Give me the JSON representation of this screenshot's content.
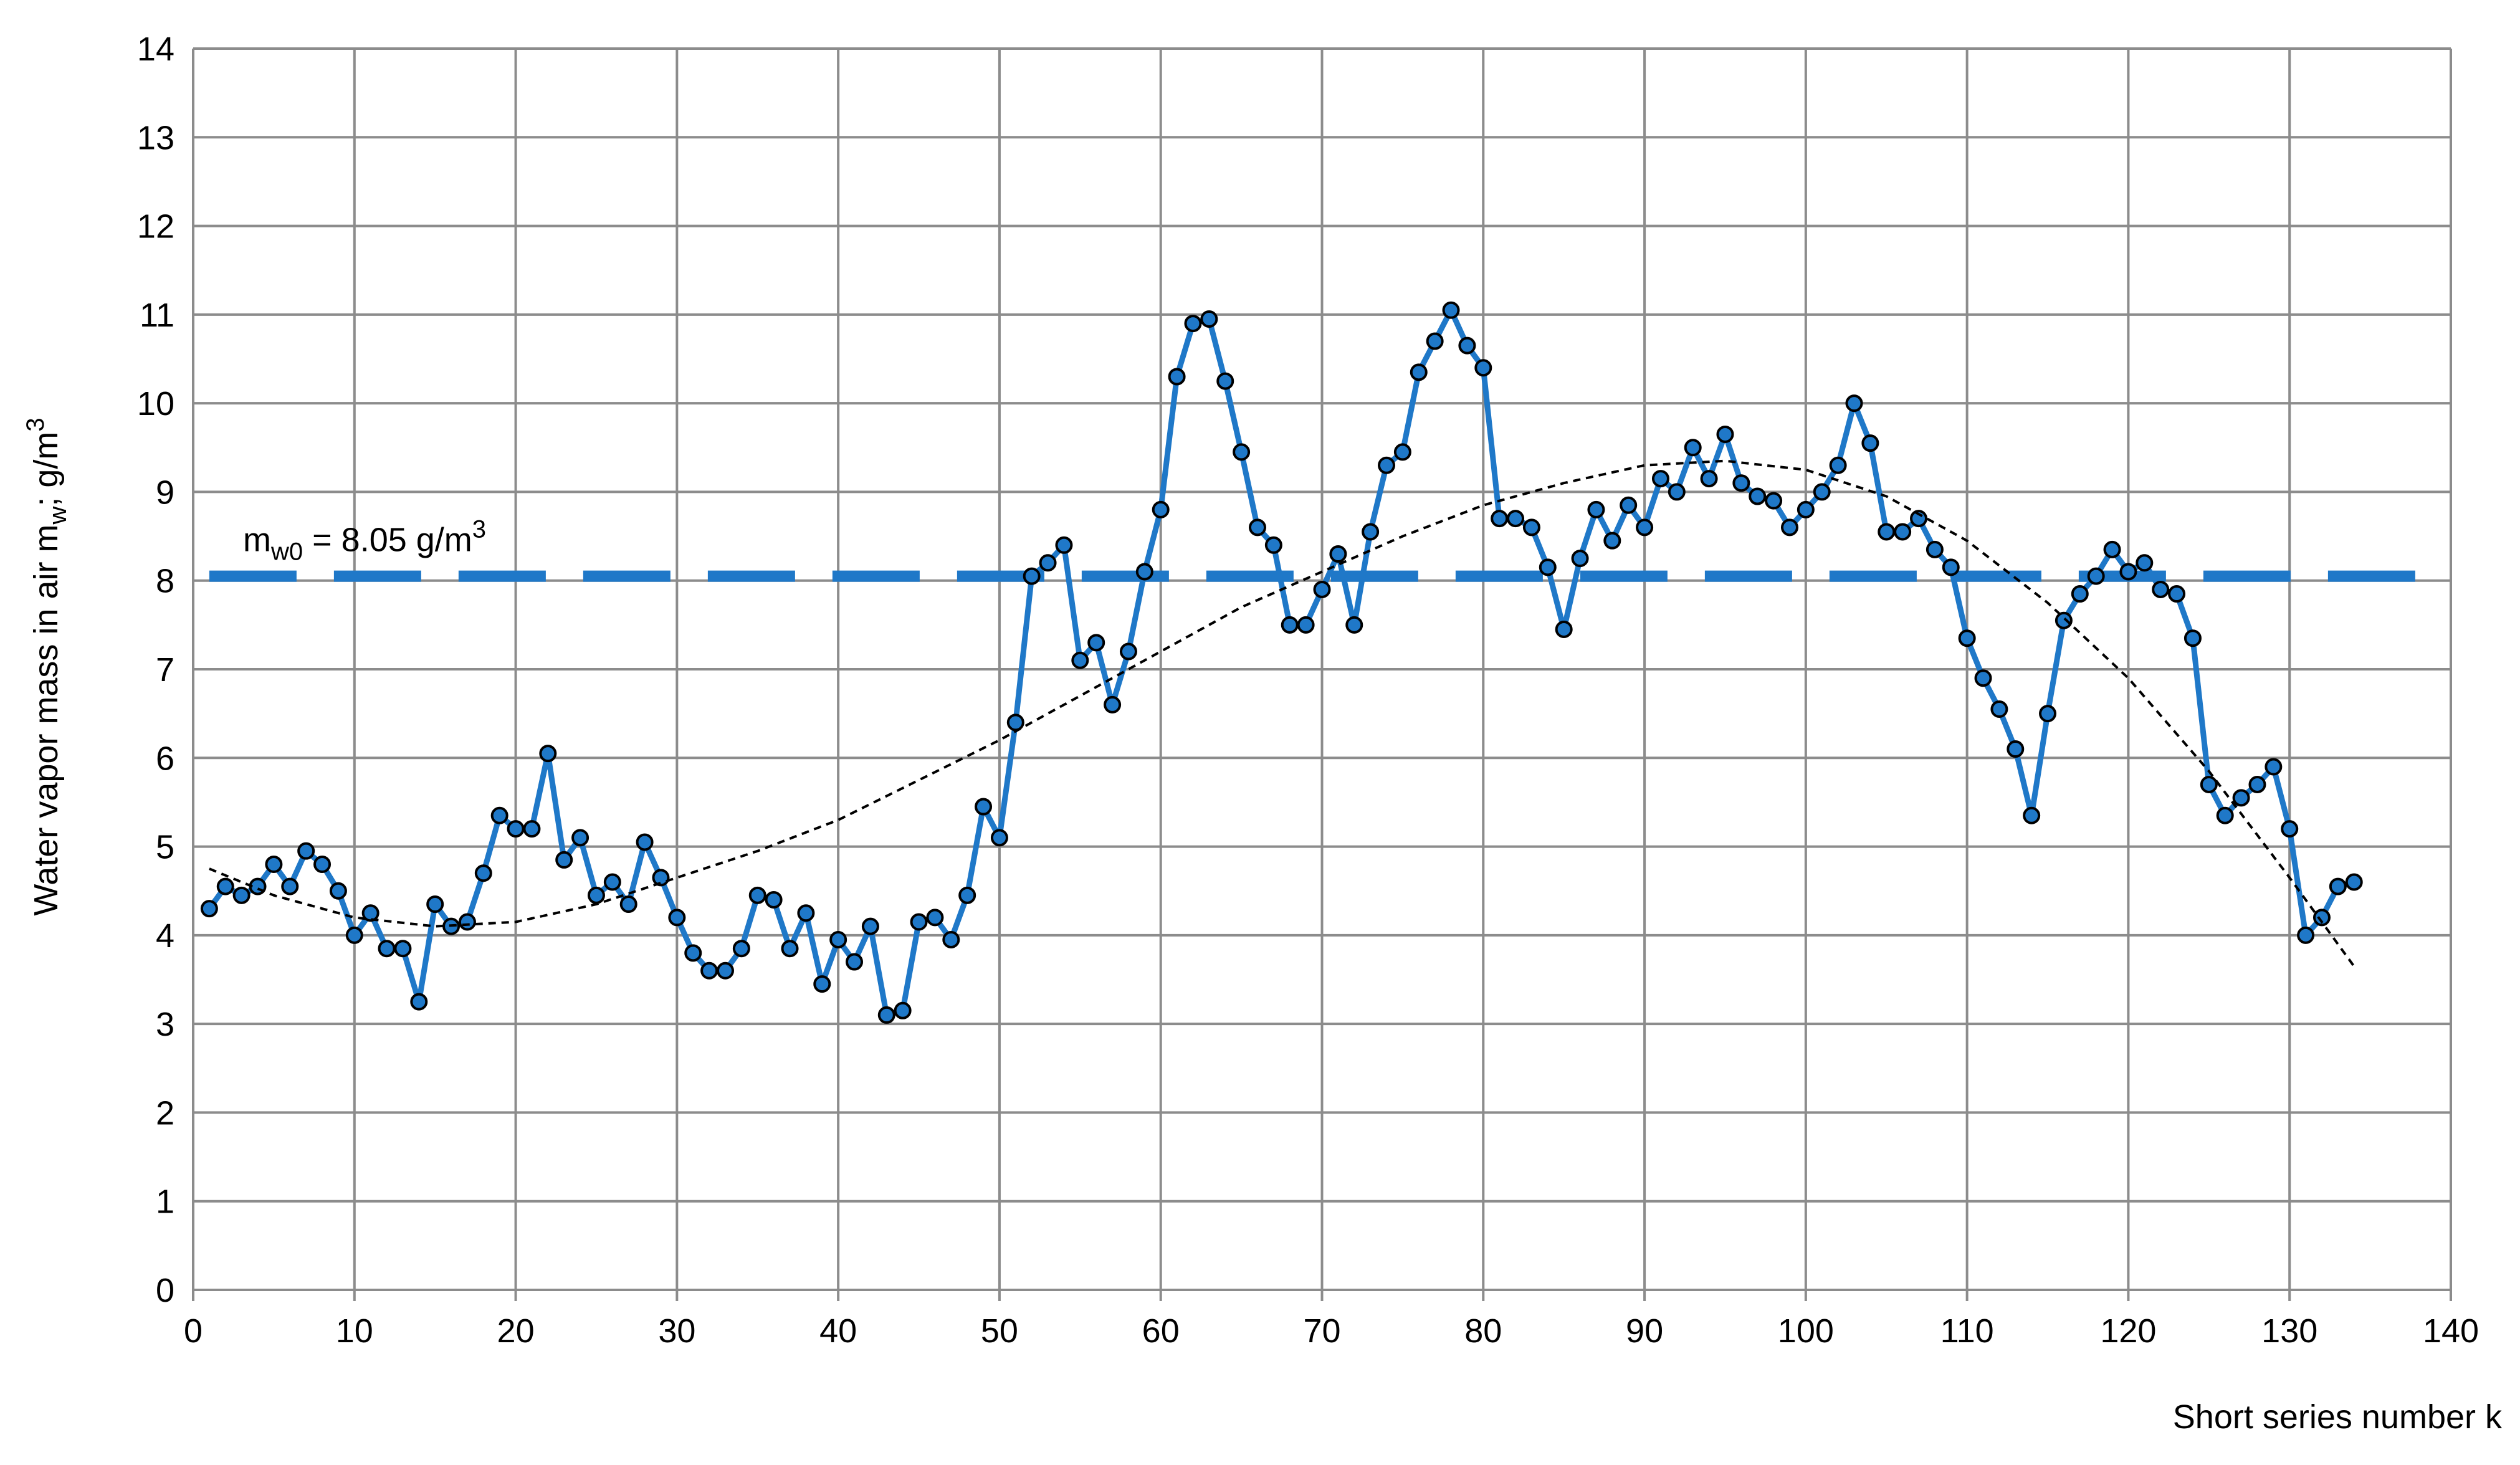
{
  "chart_data": {
    "type": "line",
    "x_label": "Short series number k",
    "y_label": {
      "text": "Water vapor mass in air m",
      "sub": "w",
      "mid": "; g/m",
      "sup": "3"
    },
    "xlim": [
      0,
      140
    ],
    "xticks": [
      0,
      10,
      20,
      30,
      40,
      50,
      60,
      70,
      80,
      90,
      100,
      110,
      120,
      130,
      140
    ],
    "ylim": [
      0,
      14
    ],
    "yticks": [
      0,
      1,
      2,
      3,
      4,
      5,
      6,
      7,
      8,
      9,
      10,
      11,
      12,
      13,
      14
    ],
    "grid": true,
    "reference": {
      "value": 8.05,
      "color": "#1f78c8",
      "label": {
        "text": "m",
        "sub": "w0",
        "mid": " = 8.05 g/m",
        "sup": "3"
      }
    },
    "series": [
      {
        "color": "#1f78c8",
        "marker": true,
        "style": "solid",
        "x": [
          1,
          2,
          3,
          4,
          5,
          6,
          7,
          8,
          9,
          10,
          11,
          12,
          13,
          14,
          15,
          16,
          17,
          18,
          19,
          20,
          21,
          22,
          23,
          24,
          25,
          26,
          27,
          28,
          29,
          30,
          31,
          32,
          33,
          34,
          35,
          36,
          37,
          38,
          39,
          40,
          41,
          42,
          43,
          44,
          45,
          46,
          47,
          48,
          49,
          50,
          51,
          52,
          53,
          54,
          55,
          56,
          57,
          58,
          59,
          60,
          61,
          62,
          63,
          64,
          65,
          66,
          67,
          68,
          69,
          70,
          71,
          72,
          73,
          74,
          75,
          76,
          77,
          78,
          79,
          80,
          81,
          82,
          83,
          84,
          85,
          86,
          87,
          88,
          89,
          90,
          91,
          92,
          93,
          94,
          95,
          96,
          97,
          98,
          99,
          100,
          101,
          102,
          103,
          104,
          105,
          106,
          107,
          108,
          109,
          110,
          111,
          112,
          113,
          114,
          115,
          116,
          117,
          118,
          119,
          120,
          121,
          122,
          123,
          124,
          125,
          126,
          127,
          128,
          129,
          130,
          131,
          132,
          133,
          134
        ],
        "values": [
          4.3,
          4.55,
          4.45,
          4.55,
          4.8,
          4.55,
          4.95,
          4.8,
          4.5,
          4.0,
          4.25,
          3.85,
          3.85,
          3.25,
          4.35,
          4.1,
          4.15,
          4.7,
          5.35,
          5.2,
          5.2,
          6.05,
          4.85,
          5.1,
          4.45,
          4.6,
          4.35,
          5.05,
          4.65,
          4.2,
          3.8,
          3.6,
          3.6,
          3.85,
          4.45,
          4.4,
          3.85,
          4.25,
          3.45,
          3.95,
          3.7,
          4.1,
          3.1,
          3.15,
          4.15,
          4.2,
          3.95,
          4.45,
          5.45,
          5.1,
          6.4,
          8.05,
          8.2,
          8.4,
          7.1,
          7.3,
          6.6,
          7.2,
          8.1,
          8.8,
          10.3,
          10.9,
          10.95,
          10.25,
          9.45,
          8.6,
          8.4,
          7.5,
          7.5,
          7.9,
          8.3,
          7.5,
          8.55,
          9.3,
          9.45,
          10.35,
          10.7,
          11.05,
          10.65,
          10.4,
          8.7,
          8.7,
          8.6,
          8.15,
          7.45,
          8.25,
          8.8,
          8.45,
          8.85,
          8.6,
          9.15,
          9.0,
          9.5,
          9.15,
          9.65,
          9.1,
          8.95,
          8.9,
          8.6,
          8.8,
          9.0,
          9.3,
          10.0,
          9.55,
          8.55,
          8.55,
          8.7,
          8.35,
          8.15,
          7.35,
          6.9,
          6.55,
          6.1,
          5.35,
          6.5,
          7.55,
          7.85,
          8.05,
          8.35,
          8.1,
          8.2,
          7.9,
          7.85,
          7.35,
          5.7,
          5.35,
          5.55,
          5.7,
          5.9,
          5.2,
          4.0,
          4.2,
          4.55,
          4.6
        ]
      },
      {
        "color": "#000000",
        "marker": false,
        "style": "dotted",
        "x": [
          1,
          5,
          10,
          15,
          20,
          25,
          30,
          35,
          40,
          45,
          50,
          55,
          60,
          65,
          70,
          75,
          80,
          85,
          90,
          95,
          100,
          105,
          110,
          115,
          120,
          125,
          130,
          134
        ],
        "values": [
          4.75,
          4.45,
          4.2,
          4.1,
          4.15,
          4.35,
          4.65,
          4.95,
          5.3,
          5.75,
          6.2,
          6.7,
          7.2,
          7.7,
          8.1,
          8.5,
          8.85,
          9.1,
          9.3,
          9.35,
          9.25,
          8.95,
          8.45,
          7.75,
          6.9,
          5.85,
          4.65,
          3.65
        ]
      }
    ]
  }
}
